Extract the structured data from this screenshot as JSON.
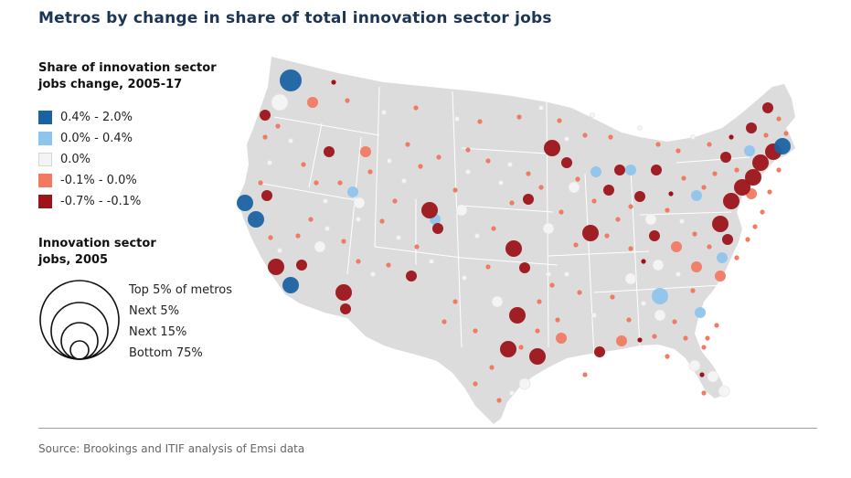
{
  "title": "Metros by change in share of total innovation sector jobs",
  "legend_color": {
    "title_line1": "Share of innovation sector",
    "title_line2": "jobs change, 2005-17",
    "items": [
      {
        "label": "0.4% -  2.0%",
        "color": "#1a63a3"
      },
      {
        "label": "0.0% -  0.4%",
        "color": "#8fc4ec"
      },
      {
        "label": "0.0%",
        "color": "#f4f4f4"
      },
      {
        "label": "-0.1% -  0.0%",
        "color": "#f07a62"
      },
      {
        "label": "-0.7% - -0.1%",
        "color": "#9c1419"
      }
    ]
  },
  "legend_size": {
    "title_line1": "Innovation sector",
    "title_line2": "jobs, 2005",
    "items": [
      {
        "label": "Top 5% of metros"
      },
      {
        "label": "Next 5%"
      },
      {
        "label": "Next 15%"
      },
      {
        "label": "Bottom 75%"
      }
    ]
  },
  "source": "Source: Brookings and ITIF analysis of Emsi data",
  "colors": {
    "land": "#dcdcdc",
    "state_border": "#ffffff"
  }
}
